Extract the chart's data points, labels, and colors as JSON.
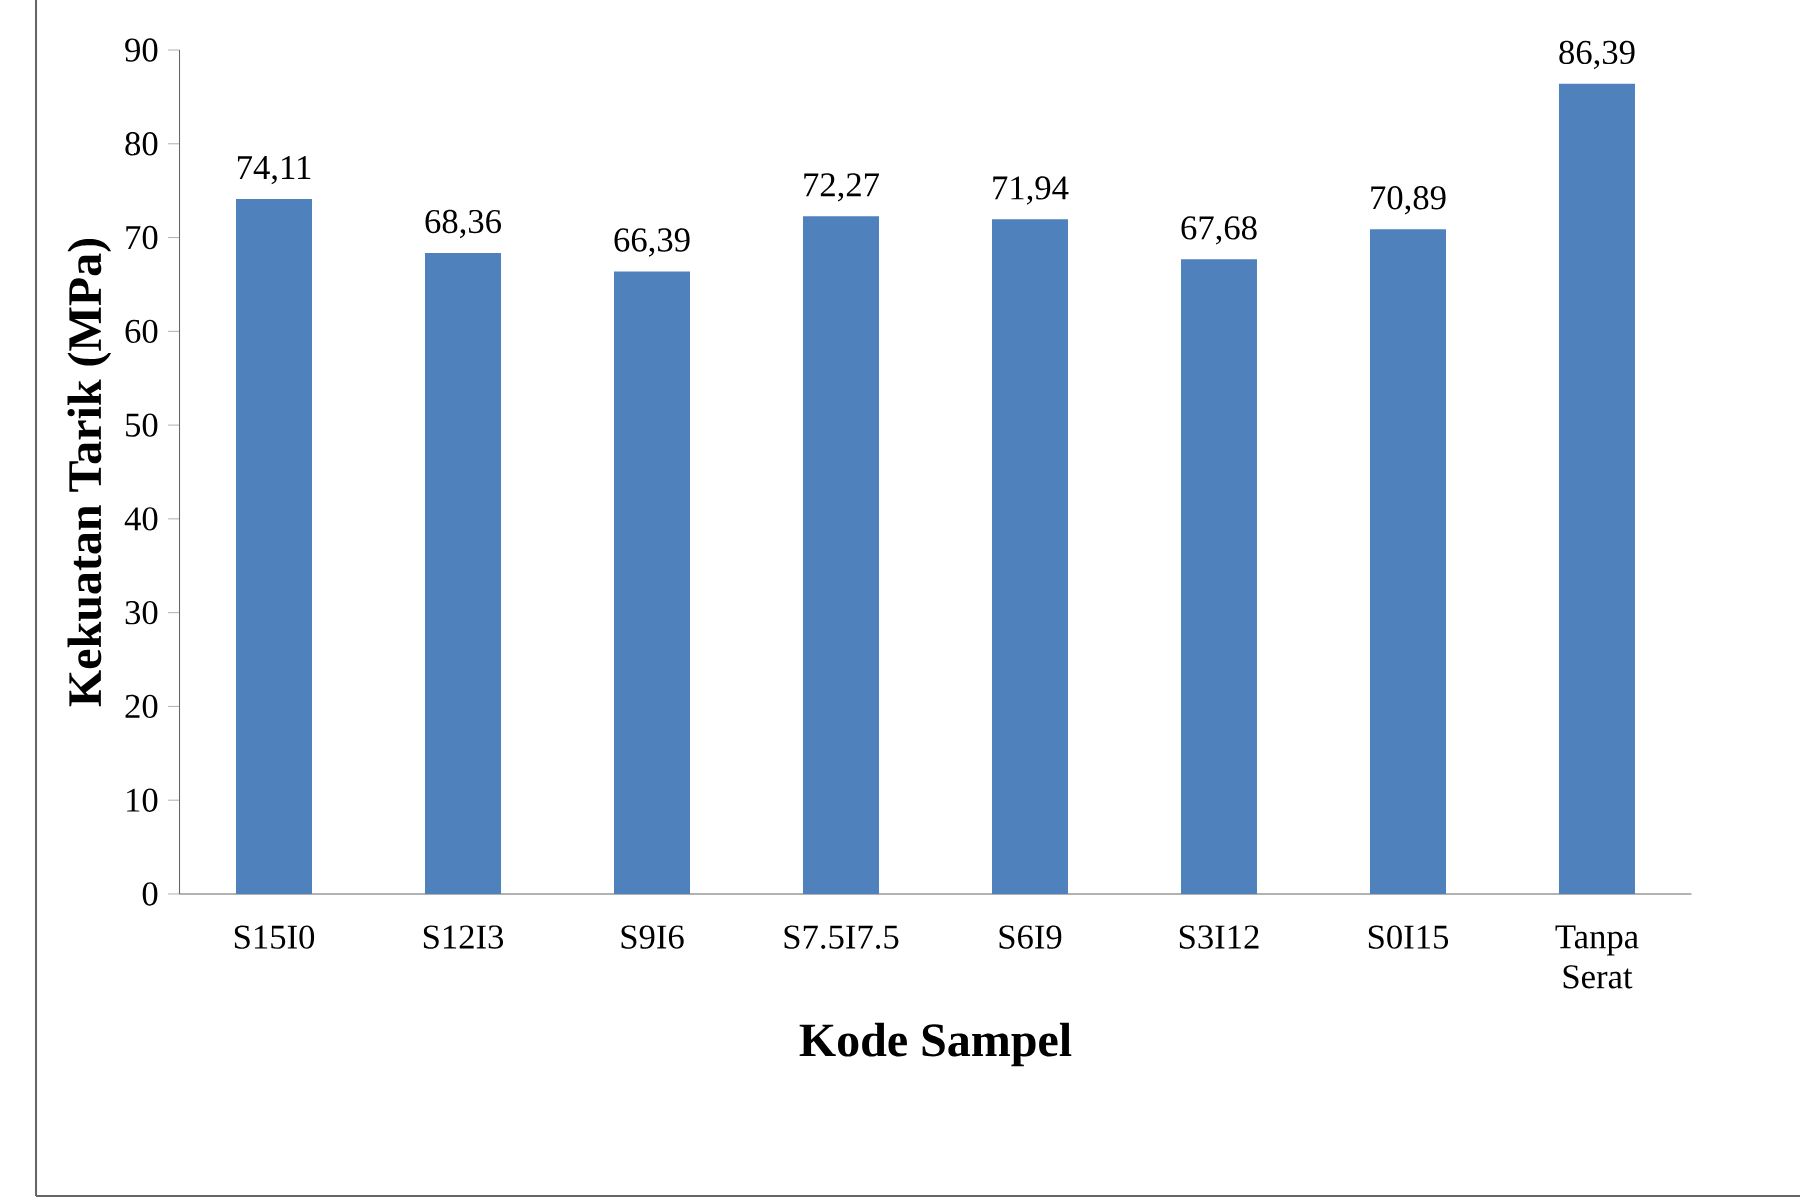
{
  "chart_data": {
    "type": "bar",
    "xlabel": "Kode Sampel",
    "ylabel": "Kekuatan Tarik (MPa)",
    "categories": [
      "S15I0",
      "S12I3",
      "S9I6",
      "S7.5I7.5",
      "S6I9",
      "S3I12",
      "S0I15",
      "Tanpa Serat"
    ],
    "values": [
      74.11,
      68.36,
      66.39,
      72.27,
      71.94,
      67.68,
      70.89,
      86.39
    ],
    "value_labels": [
      "74,11",
      "68,36",
      "66,39",
      "72,27",
      "71,94",
      "67,68",
      "70,89",
      "86,39"
    ],
    "color": "#4f81bd",
    "ylim": [
      0,
      90
    ],
    "yticks": [
      0,
      10,
      20,
      30,
      40,
      50,
      60,
      70,
      80,
      90
    ]
  }
}
